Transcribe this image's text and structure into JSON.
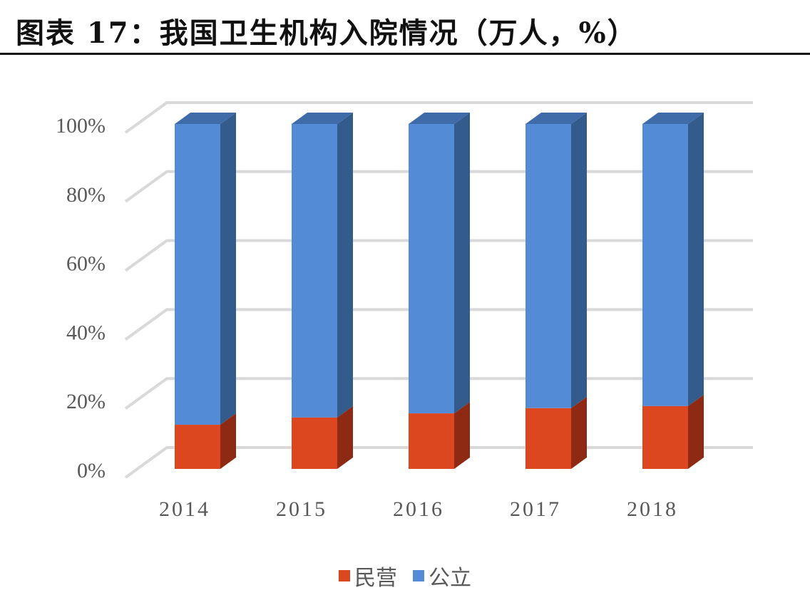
{
  "title": "图表 17：我国卫生机构入院情况（万人，%）",
  "colors": {
    "private_front": "#dc4720",
    "private_side": "#8e2a13",
    "public_front": "#548bd6",
    "public_side": "#335b8c",
    "public_top": "#3f6ba8",
    "grid": "#d9d9d9"
  },
  "legend": [
    {
      "label": "民营",
      "color": "#dc4720"
    },
    {
      "label": "公立",
      "color": "#548bd6"
    }
  ],
  "chart_data": {
    "type": "bar",
    "subtype": "3d-stacked-100-percent",
    "title": "我国卫生机构入院情况（万人，%）",
    "xlabel": "",
    "ylabel": "",
    "categories": [
      "2014",
      "2015",
      "2016",
      "2017",
      "2018"
    ],
    "series": [
      {
        "name": "民营",
        "values": [
          12.8,
          14.9,
          16.1,
          17.6,
          18.2
        ]
      },
      {
        "name": "公立",
        "values": [
          87.2,
          85.1,
          83.9,
          82.4,
          81.8
        ]
      }
    ],
    "yticks": [
      "0%",
      "20%",
      "40%",
      "60%",
      "80%",
      "100%"
    ],
    "ylim": [
      0,
      100
    ],
    "grid": true,
    "legend_position": "bottom"
  }
}
